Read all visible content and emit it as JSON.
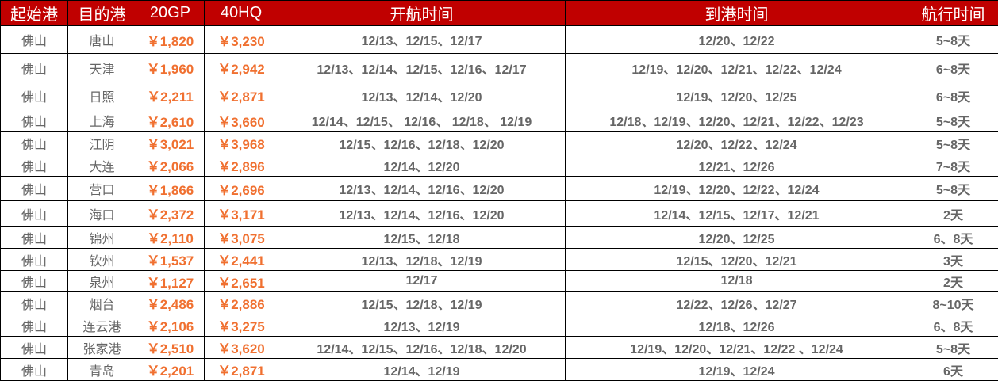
{
  "headers": [
    "起始港",
    "目的港",
    "20GP",
    "40HQ",
    "开航时间",
    "到港时间",
    "航行时间"
  ],
  "colors": {
    "header_bg": "#c00000",
    "header_text": "#ffffff",
    "price": "#f07030",
    "text": "#666666"
  },
  "rows": [
    [
      "佛山",
      "唐山",
      "￥1,820",
      "￥3,230",
      "12/13、12/15、12/17",
      "12/20、12/22",
      "5~8天"
    ],
    [
      "佛山",
      "天津",
      "￥1,960",
      "￥2,942",
      "12/13、12/14、12/15、12/16、12/17",
      "12/19、12/20、12/21、12/22、12/24",
      "6~8天"
    ],
    [
      "佛山",
      "日照",
      "￥2,211",
      "￥2,871",
      "12/13、12/14、12/20",
      "12/19、12/20、12/25",
      "6~8天"
    ],
    [
      "佛山",
      "上海",
      "￥2,610",
      "￥3,660",
      "12/14、12/15、 12/16、 12/18、 12/19",
      "12/18、12/19、12/20、12/21、12/22、12/23",
      "5~8天"
    ],
    [
      "佛山",
      "江阴",
      "￥3,021",
      "￥3,968",
      "12/15、12/16、12/18、12/20",
      "12/20、12/22、12/24",
      "5~8天"
    ],
    [
      "佛山",
      "大连",
      "￥2,066",
      "￥2,896",
      "12/14、12/20",
      "12/21、12/26",
      "7~8天"
    ],
    [
      "佛山",
      "营口",
      "￥1,866",
      "￥2,696",
      "12/13、12/14、12/16、12/20",
      "12/19、12/20、12/22、12/24",
      "5~8天"
    ],
    [
      "佛山",
      "海口",
      "￥2,372",
      "￥3,171",
      "12/13、12/14、12/16、12/20",
      "12/14、12/15、12/17、12/21",
      "2天"
    ],
    [
      "佛山",
      "锦州",
      "￥2,110",
      "￥3,075",
      "12/15、12/18",
      "12/20、12/25",
      "6、8天"
    ],
    [
      "佛山",
      "钦州",
      "￥1,537",
      "￥2,441",
      "12/13、12/18、12/19",
      "12/15、12/20、12/21",
      "3天"
    ],
    [
      "佛山",
      "泉州",
      "￥1,127",
      "￥2,651",
      "12/17",
      "12/18",
      "2天"
    ],
    [
      "佛山",
      "烟台",
      "￥2,486",
      "￥2,886",
      "12/15、12/18、12/19",
      "12/22、12/26、12/27",
      "8~10天"
    ],
    [
      "佛山",
      "连云港",
      "￥2,106",
      "￥3,275",
      "12/13、12/19",
      "12/18、12/26",
      "6、8天"
    ],
    [
      "佛山",
      "张家港",
      "￥2,510",
      "￥3,620",
      "12/14、12/15、12/16、12/18、12/20",
      "12/19、12/20、12/21、12/22 、12/24",
      "5~8天"
    ],
    [
      "佛山",
      "青岛",
      "￥2,201",
      "￥2,871",
      "12/14、12/19",
      "12/19、12/24",
      "6天"
    ]
  ]
}
